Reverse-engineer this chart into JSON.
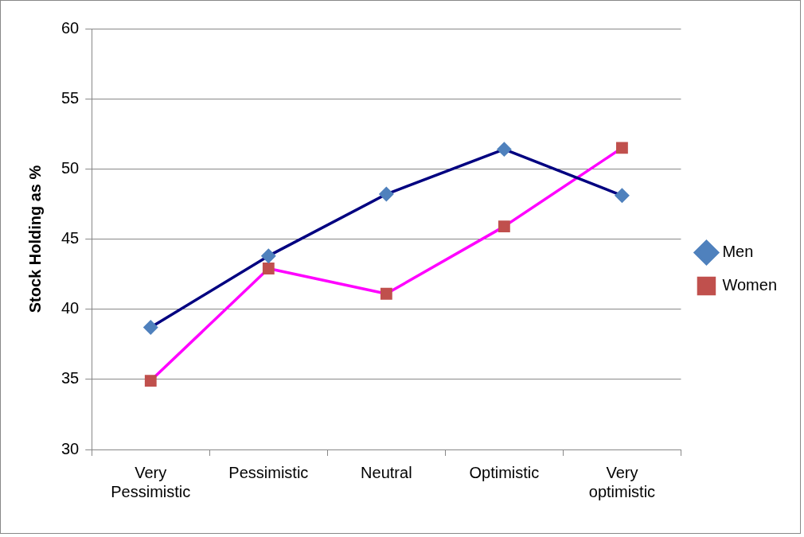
{
  "chart_data": {
    "type": "line",
    "ylabel": "Stock Holding as %",
    "categories": [
      "Very Pessimistic",
      "Pessimistic",
      "Neutral",
      "Optimistic",
      "Very optimistic"
    ],
    "series": [
      {
        "name": "Men",
        "color": "#000080",
        "colors": [
          "#4f81bd",
          "#4f81bd",
          "#4f81bd",
          "#4f81bd",
          "#4f81bd"
        ],
        "marker": "diamond",
        "values": [
          38.7,
          43.8,
          48.2,
          51.4,
          48.1
        ]
      },
      {
        "name": "Women",
        "color": "#ff00ff",
        "colors": [
          "#c0504d",
          "#c0504d",
          "#c0504d",
          "#c0504d",
          "#c0504d"
        ],
        "marker": "square",
        "values": [
          34.9,
          42.9,
          41.1,
          45.9,
          51.5
        ]
      }
    ],
    "ylim": [
      30,
      60
    ],
    "yticks": [
      30,
      35,
      40,
      45,
      50,
      55,
      60
    ],
    "grid": "y",
    "legend": "right"
  }
}
